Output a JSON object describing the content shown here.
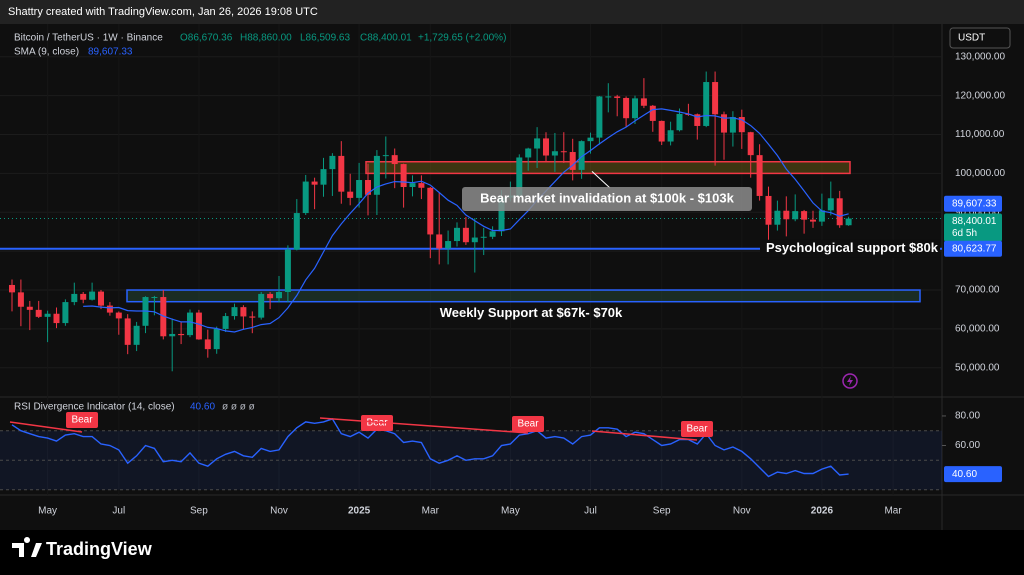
{
  "header": {
    "text": "Shattry created with TradingView.com, Jan 26, 2026 19:08 UTC"
  },
  "currency_button": "USDT",
  "logo": "TradingView",
  "chart_data": [
    {
      "type": "candlestick",
      "title": "Bitcoin / TetherUS · 1W · Binance",
      "legend_values": [
        "O86,670.36",
        "H88,860.00",
        "L86,509.63",
        "C88,400.01",
        "+1,729.65 (+2.00%)"
      ],
      "categories": [
        null,
        null,
        null,
        null,
        "May",
        null,
        null,
        null,
        null,
        null,
        null,
        null,
        "Jul",
        null,
        null,
        null,
        null,
        null,
        null,
        null,
        null,
        "Sep",
        null,
        null,
        null,
        null,
        null,
        null,
        null,
        null,
        "Nov",
        null,
        null,
        null,
        null,
        null,
        null,
        null,
        null,
        "2025",
        null,
        null,
        null,
        null,
        null,
        null,
        null,
        "Mar",
        null,
        null,
        null,
        null,
        null,
        null,
        null,
        null,
        "May",
        null,
        null,
        null,
        null,
        null,
        null,
        null,
        null,
        "Jul",
        null,
        null,
        null,
        null,
        null,
        null,
        null,
        "Sep",
        null,
        null,
        null,
        null,
        null,
        null,
        null,
        null,
        "Nov",
        null,
        null,
        null,
        null,
        null,
        null,
        null,
        null,
        "2026",
        null,
        null,
        null,
        null,
        null,
        null,
        null,
        "Mar"
      ],
      "open": [
        71300,
        69400,
        65700,
        64900,
        63100,
        63900,
        61500,
        66900,
        69000,
        67500,
        69600,
        66000,
        64200,
        62700,
        55900,
        60800,
        68200,
        68200,
        58100,
        58700,
        58400,
        64200,
        57300,
        54800,
        60000,
        63300,
        65600,
        63200,
        62900,
        69000,
        67900,
        69500,
        80400,
        89800,
        97900,
        97100,
        101100,
        104500,
        95300,
        93700,
        98300,
        94500,
        104500,
        104700,
        102400,
        96500,
        97500,
        96300,
        84300,
        80700,
        82600,
        86000,
        82300,
        83500,
        83700,
        85100,
        93800,
        94300,
        104100,
        106400,
        109000,
        104600,
        105700,
        105500,
        100900,
        108300,
        109200,
        119800,
        119800,
        119400,
        114200,
        119300,
        117400,
        113500,
        108200,
        111100,
        115300,
        115200,
        112200,
        123500,
        115200,
        110500,
        114500,
        110600,
        104700,
        94200,
        86800,
        90400,
        88200,
        90300,
        88100,
        87600,
        90500,
        93600,
        86670.36,
        null,
        null,
        null,
        null,
        null
      ],
      "high": [
        72700,
        72700,
        67200,
        67200,
        64700,
        65500,
        67600,
        71900,
        69500,
        71900,
        70000,
        66900,
        64500,
        63800,
        61800,
        68400,
        68500,
        70000,
        62700,
        61800,
        65000,
        64900,
        59800,
        60600,
        64100,
        66500,
        66100,
        64500,
        69500,
        69500,
        73600,
        81500,
        93400,
        99600,
        98900,
        104000,
        105200,
        108300,
        99900,
        102700,
        102500,
        106000,
        109500,
        106400,
        102500,
        99500,
        99500,
        96500,
        95000,
        85300,
        87400,
        88800,
        88500,
        86000,
        86400,
        95700,
        97900,
        104900,
        106600,
        111900,
        110600,
        110400,
        110600,
        108900,
        108500,
        110500,
        119900,
        123200,
        120200,
        119800,
        120000,
        124500,
        117600,
        113600,
        113300,
        116700,
        117900,
        115400,
        126200,
        126200,
        115900,
        116000,
        116400,
        110700,
        107500,
        96600,
        93000,
        94100,
        94600,
        90600,
        90400,
        94800,
        97900,
        95500,
        88860,
        null,
        null,
        null,
        null,
        null
      ],
      "low": [
        64500,
        60700,
        59700,
        62800,
        56600,
        60200,
        60800,
        66100,
        66600,
        67300,
        65100,
        63400,
        58500,
        53500,
        54300,
        58900,
        63500,
        57300,
        49100,
        56100,
        57900,
        57200,
        52600,
        53600,
        59200,
        62400,
        59900,
        58900,
        62400,
        65100,
        66800,
        66800,
        80200,
        89300,
        90800,
        94000,
        94200,
        92200,
        91800,
        91200,
        89200,
        89300,
        98700,
        96200,
        91200,
        94100,
        93400,
        78200,
        76600,
        76600,
        81200,
        81600,
        74500,
        79000,
        83100,
        83900,
        92800,
        93400,
        100700,
        101400,
        103100,
        100400,
        102700,
        98200,
        98600,
        105100,
        107400,
        115700,
        114700,
        111900,
        112700,
        116800,
        110700,
        107300,
        107200,
        110800,
        114800,
        108700,
        111900,
        102000,
        103500,
        106900,
        106300,
        98900,
        93000,
        80600,
        85300,
        83800,
        87700,
        84500,
        86000,
        86500,
        89200,
        86000,
        86509.63,
        null,
        null,
        null,
        null,
        null
      ],
      "close": [
        69400,
        65700,
        64900,
        63100,
        63900,
        61500,
        66900,
        69000,
        67500,
        69600,
        66000,
        64200,
        62700,
        55900,
        60800,
        68200,
        68200,
        58100,
        58700,
        58400,
        64200,
        57300,
        54800,
        60000,
        63300,
        65600,
        63200,
        62900,
        69000,
        67900,
        69500,
        80400,
        89800,
        97900,
        97100,
        101100,
        104500,
        95300,
        93700,
        98300,
        94500,
        104500,
        104700,
        102400,
        96500,
        97500,
        96300,
        84300,
        80700,
        82600,
        86000,
        82300,
        83500,
        83700,
        85100,
        93800,
        94300,
        104100,
        106400,
        109000,
        104600,
        105700,
        105500,
        100900,
        108300,
        109200,
        119800,
        119800,
        119400,
        114200,
        119300,
        117400,
        113500,
        108200,
        111100,
        115300,
        115200,
        112200,
        123500,
        115200,
        110500,
        114500,
        110600,
        104700,
        94200,
        86800,
        90400,
        88200,
        90300,
        88100,
        87600,
        90500,
        93600,
        86670.36,
        88400.01,
        null,
        null,
        null,
        null,
        null
      ],
      "up_color": "#089981",
      "down_color": "#f23645",
      "series": [
        {
          "name": "SMA (9, close)",
          "color": "#2962ff",
          "last_value_label": "89,607.33",
          "values": [
            null,
            null,
            null,
            null,
            null,
            null,
            null,
            null,
            65800,
            65900,
            65600,
            65400,
            65500,
            64700,
            64600,
            64600,
            64400,
            63300,
            62500,
            61800,
            61800,
            61200,
            60400,
            60100,
            59500,
            59200,
            59900,
            60400,
            61100,
            61400,
            62900,
            65400,
            68600,
            72600,
            75600,
            79800,
            84000,
            87000,
            89700,
            92200,
            94900,
            96500,
            97300,
            97900,
            97800,
            97600,
            98000,
            97000,
            95100,
            93100,
            91800,
            89300,
            87800,
            86400,
            85300,
            85300,
            85700,
            88100,
            90400,
            93100,
            95500,
            97900,
            100300,
            102100,
            104300,
            105900,
            107600,
            109200,
            110700,
            111900,
            113500,
            115000,
            116400,
            116600,
            116200,
            115800,
            115300,
            114500,
            114900,
            114800,
            114200,
            114300,
            113800,
            112300,
            110300,
            107500,
            104600,
            101100,
            98500,
            95500,
            92400,
            90300,
            89900,
            89000,
            89607.33,
            null,
            null,
            null,
            null,
            null
          ]
        }
      ],
      "ylim": [
        43000,
        137400
      ],
      "yticks": [
        {
          "value": 50000,
          "label": "50,000.00"
        },
        {
          "value": 60000,
          "label": "60,000.00"
        },
        {
          "value": 70000,
          "label": "70,000.00"
        },
        {
          "value": 80000,
          "label": "80,000.00"
        },
        {
          "value": 90000,
          "label": "90,000.00"
        },
        {
          "value": 100000,
          "label": "100,000.00"
        },
        {
          "value": 110000,
          "label": "110,000.00"
        },
        {
          "value": 120000,
          "label": "120,000.00"
        },
        {
          "value": 130000,
          "label": "130,000.00"
        }
      ],
      "grid": true,
      "price_tags": [
        {
          "value": 89607.33,
          "label": "89,607.33",
          "color": "#2962ff"
        },
        {
          "value": 88400.01,
          "label": "88,400.01",
          "sub": "6d 5h",
          "color": "#089981"
        },
        {
          "value": 80623.77,
          "label": "80,623.77",
          "color": "#2962ff"
        }
      ],
      "annotations": [
        {
          "type": "zone",
          "text": "Bear market invalidation at $100k - $103k",
          "range": [
            100000,
            103000
          ],
          "color": "#f23645"
        },
        {
          "type": "zone",
          "text": "Weekly Support at $67k- $70k",
          "range": [
            67000,
            70000
          ],
          "color": "#2962ff"
        },
        {
          "type": "hline",
          "text": "Psychological support $80k",
          "value": 80623.77,
          "color": "#2962ff"
        }
      ]
    },
    {
      "type": "line",
      "title": "RSI Divergence Indicator (14, close)",
      "legend_value": "40.60",
      "legend_extras": "ø ø ø ø",
      "series": [
        {
          "color": "#2962ff",
          "value_label": "40.60",
          "values": [
            74,
            70,
            68,
            66,
            65,
            63,
            67,
            68,
            66,
            66,
            61,
            60,
            57,
            48,
            53,
            60,
            58,
            49,
            50,
            49,
            55,
            48,
            46,
            51,
            54,
            56,
            53,
            52,
            58,
            56,
            57,
            66,
            72,
            76,
            75,
            76,
            78,
            68,
            66,
            69,
            65,
            71,
            70,
            68,
            62,
            63,
            62,
            51,
            48,
            50,
            53,
            50,
            51,
            51,
            53,
            60,
            61,
            67,
            68,
            70,
            65,
            66,
            65,
            61,
            66,
            67,
            72,
            72,
            71,
            66,
            69,
            68,
            64,
            60,
            61,
            64,
            64,
            61,
            68,
            60,
            57,
            59,
            56,
            51,
            45,
            39,
            42,
            41,
            43,
            41,
            41,
            44,
            46,
            40,
            40.6
          ]
        }
      ],
      "ylim": [
        28.5,
        90.8
      ],
      "yticks": [
        {
          "value": 80,
          "label": "80.00"
        },
        {
          "value": 60,
          "label": "60.00"
        }
      ],
      "band": [
        30,
        70
      ],
      "levels": [
        70,
        50,
        30
      ],
      "annotations": [
        "Bear",
        "Bear",
        "Bear",
        "Bear"
      ]
    }
  ]
}
